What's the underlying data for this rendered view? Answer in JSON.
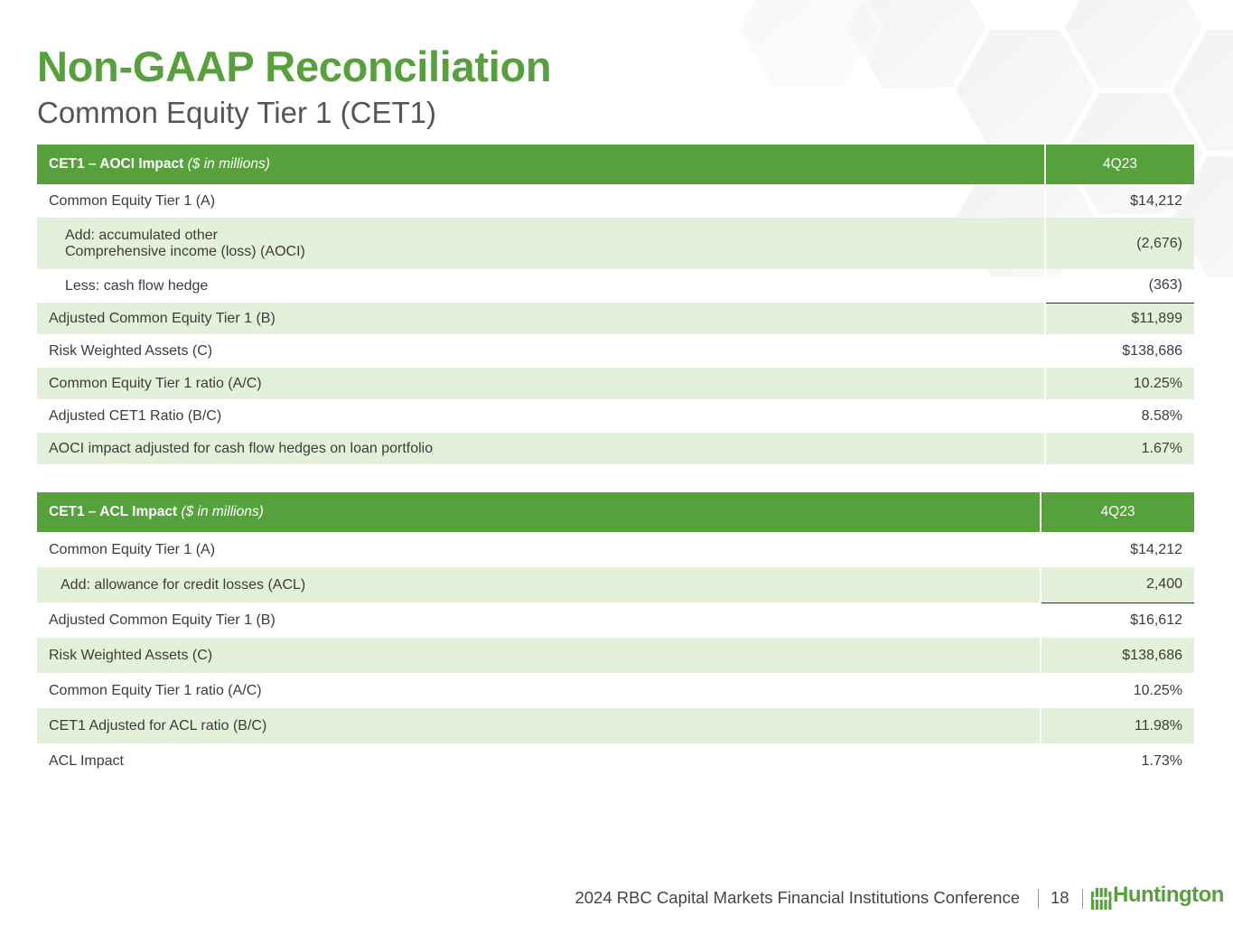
{
  "title": "Non-GAAP Reconciliation",
  "subtitle": "Common Equity Tier 1 (CET1)",
  "aoci_table": {
    "header_bold": "CET1 – AOCI Impact",
    "header_italic": "($ in millions)",
    "period": "4Q23",
    "rows": [
      {
        "label": "Common Equity Tier 1 (A)",
        "value": "$14,212"
      },
      {
        "label_line1": "Add: accumulated other",
        "label_line2": "Comprehensive income (loss) (AOCI)",
        "value": "(2,676)"
      },
      {
        "label": "Less: cash flow hedge",
        "value": "(363)"
      },
      {
        "label": "Adjusted Common Equity Tier 1 (B)",
        "value": "$11,899"
      },
      {
        "label": "Risk Weighted Assets (C)",
        "value": "$138,686"
      },
      {
        "label": "Common Equity Tier 1 ratio (A/C)",
        "value": "10.25%"
      },
      {
        "label": "Adjusted CET1 Ratio (B/C)",
        "value": "8.58%"
      },
      {
        "label": "AOCI impact adjusted for cash flow hedges on loan portfolio",
        "value": "1.67%"
      }
    ]
  },
  "acl_table": {
    "header_bold": "CET1 – ACL Impact",
    "header_italic": "($ in millions)",
    "period": "4Q23",
    "rows": [
      {
        "label": "Common Equity Tier 1 (A)",
        "value": "$14,212"
      },
      {
        "label": "Add: allowance for credit losses (ACL)",
        "value": "2,400"
      },
      {
        "label": "Adjusted Common Equity Tier 1 (B)",
        "value": "$16,612"
      },
      {
        "label": "Risk Weighted Assets (C)",
        "value": "$138,686"
      },
      {
        "label": "Common Equity Tier 1 ratio (A/C)",
        "value": "10.25%"
      },
      {
        "label": "CET1 Adjusted for ACL ratio (B/C)",
        "value": "11.98%"
      },
      {
        "label": "ACL Impact",
        "value": "1.73%"
      }
    ]
  },
  "footer": {
    "conference": "2024 RBC Capital Markets Financial Institutions Conference",
    "page_number": "18",
    "logo_text": "Huntington"
  },
  "colors": {
    "brand_green": "#56a13b",
    "row_tint": "#e3f0da"
  }
}
